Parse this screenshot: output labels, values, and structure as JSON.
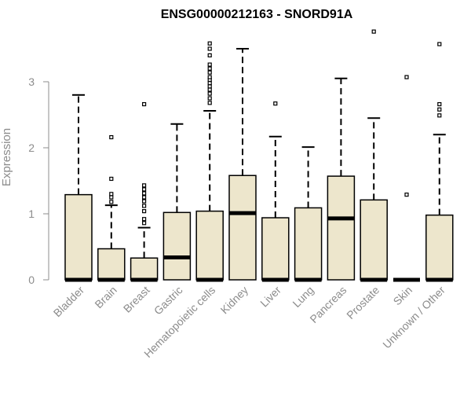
{
  "chart_data": {
    "type": "box",
    "title": "ENSG00000212163 - SNORD91A",
    "xlabel": "",
    "ylabel": "Expression",
    "ylim": [
      0,
      3.8
    ],
    "yticks": [
      0,
      1,
      2,
      3
    ],
    "box_fill": "#ede6cc",
    "categories": [
      "Bladder",
      "Brain",
      "Breast",
      "Gastric",
      "Hematopoietic cells",
      "Kidney",
      "Liver",
      "Lung",
      "Pancreas",
      "Prostate",
      "Skin",
      "Unknown / Other"
    ],
    "boxes": [
      {
        "category": "Bladder",
        "q1": 0,
        "median": 0,
        "q3": 1.29,
        "whisker_low": 0,
        "whisker_high": 2.8,
        "outliers": []
      },
      {
        "category": "Brain",
        "q1": 0,
        "median": 0,
        "q3": 0.47,
        "whisker_low": 0,
        "whisker_high": 1.13,
        "outliers": [
          1.18,
          1.25,
          1.3,
          1.53,
          2.16
        ]
      },
      {
        "category": "Breast",
        "q1": 0,
        "median": 0,
        "q3": 0.33,
        "whisker_low": 0,
        "whisker_high": 0.79,
        "outliers": [
          0.86,
          0.92,
          1.04,
          1.12,
          1.19,
          1.25,
          1.31,
          1.37,
          1.43,
          2.66
        ]
      },
      {
        "category": "Gastric",
        "q1": 0,
        "median": 0.34,
        "q3": 1.02,
        "whisker_low": 0,
        "whisker_high": 2.36,
        "outliers": []
      },
      {
        "category": "Hematopoietic cells",
        "q1": 0,
        "median": 0,
        "q3": 1.04,
        "whisker_low": 0,
        "whisker_high": 2.56,
        "outliers": [
          2.68,
          2.75,
          2.82,
          2.88,
          2.93,
          2.98,
          3.03,
          3.07,
          3.14,
          3.2,
          3.26,
          3.4,
          3.5,
          3.58
        ]
      },
      {
        "category": "Kidney",
        "q1": 0,
        "median": 1.01,
        "q3": 1.58,
        "whisker_low": 0,
        "whisker_high": 3.5,
        "outliers": []
      },
      {
        "category": "Liver",
        "q1": 0,
        "median": 0,
        "q3": 0.94,
        "whisker_low": 0,
        "whisker_high": 2.17,
        "outliers": [
          2.67
        ]
      },
      {
        "category": "Lung",
        "q1": 0,
        "median": 0,
        "q3": 1.09,
        "whisker_low": 0,
        "whisker_high": 2.01,
        "outliers": []
      },
      {
        "category": "Pancreas",
        "q1": 0,
        "median": 0.93,
        "q3": 1.57,
        "whisker_low": 0,
        "whisker_high": 3.05,
        "outliers": []
      },
      {
        "category": "Prostate",
        "q1": 0,
        "median": 0,
        "q3": 1.21,
        "whisker_low": 0,
        "whisker_high": 2.45,
        "outliers": [
          3.76
        ]
      },
      {
        "category": "Skin",
        "q1": 0,
        "median": 0,
        "q3": 0,
        "whisker_low": 0,
        "whisker_high": 0,
        "outliers": [
          1.29,
          3.07
        ]
      },
      {
        "category": "Unknown / Other",
        "q1": 0,
        "median": 0,
        "q3": 0.98,
        "whisker_low": 0,
        "whisker_high": 2.2,
        "outliers": [
          2.49,
          2.58,
          2.66,
          3.57
        ]
      }
    ]
  }
}
